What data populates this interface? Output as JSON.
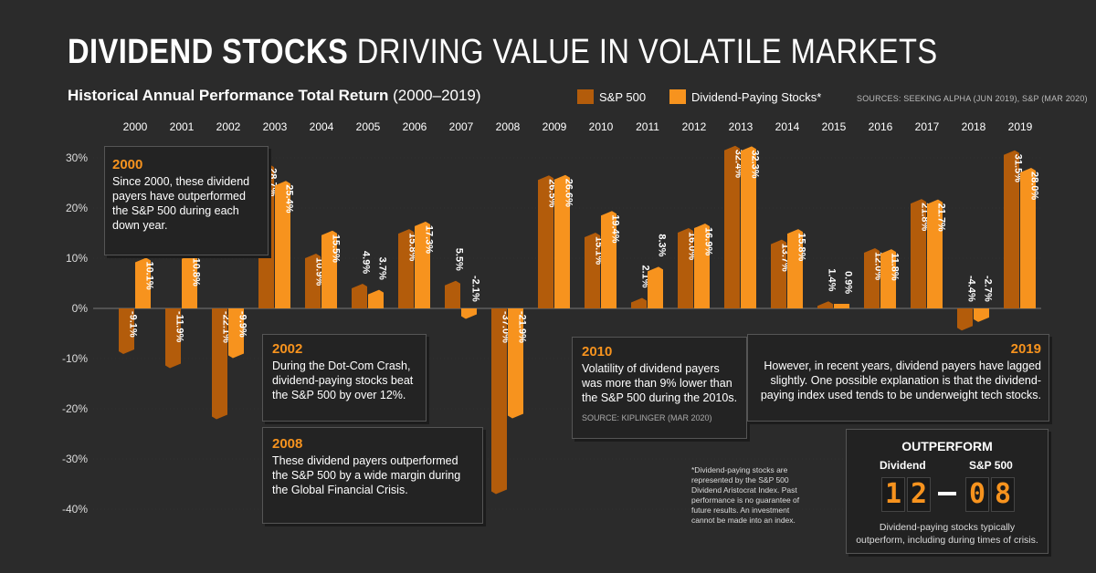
{
  "title": {
    "bold": "DIVIDEND STOCKS",
    "light": " DRIVING VALUE IN VOLATILE MARKETS"
  },
  "subtitle": {
    "bold": "Historical  Annual Performance Total Return",
    "light": " (2000–2019)"
  },
  "legend": {
    "sp500": "S&P 500",
    "dividend": "Dividend-Paying Stocks*"
  },
  "sources": "SOURCES: SEEKING ALPHA (JUN 2019), S&P (MAR 2020)",
  "colors": {
    "sp500": "#b35c0b",
    "dividend": "#f7931e",
    "background": "#2b2b2b"
  },
  "chart_data": {
    "type": "bar",
    "categories": [
      "2000",
      "2001",
      "2002",
      "2003",
      "2004",
      "2005",
      "2006",
      "2007",
      "2008",
      "2009",
      "2010",
      "2011",
      "2012",
      "2013",
      "2014",
      "2015",
      "2016",
      "2017",
      "2018",
      "2019"
    ],
    "series": [
      {
        "name": "S&P 500",
        "values": [
          -9.1,
          -11.9,
          -22.1,
          28.7,
          10.9,
          4.9,
          15.8,
          5.5,
          -37.0,
          26.5,
          15.1,
          2.1,
          16.0,
          32.4,
          13.7,
          1.4,
          12.0,
          21.8,
          -4.4,
          31.5
        ],
        "labels": [
          "-9.1%",
          "-11.9%",
          "-22.1%",
          "28.7%",
          "10.9%",
          "4.9%",
          "15.8%",
          "5.5%",
          "-37.0%",
          "26.5%",
          "15.1%",
          "2.1%",
          "16.0%",
          "32.4%",
          "13.7%",
          "1.4%",
          "12.0%",
          "21.8%",
          "-4.4%",
          "31.5%"
        ]
      },
      {
        "name": "Dividend-Paying Stocks*",
        "values": [
          10.1,
          10.8,
          -9.9,
          25.4,
          15.5,
          3.7,
          17.3,
          -2.1,
          -21.9,
          26.6,
          19.4,
          8.3,
          16.9,
          32.3,
          15.8,
          0.9,
          11.8,
          21.7,
          -2.7,
          28.0
        ],
        "labels": [
          "10.1%",
          "10.8%",
          "-9.9%",
          "25.4%",
          "15.5%",
          "3.7%",
          "17.3%",
          "-2.1%",
          "-21.9%",
          "26.6%",
          "19.4%",
          "8.3%",
          "16.9%",
          "32.3%",
          "15.8%",
          "0.9%",
          "11.8%",
          "21.7%",
          "-2.7%",
          "28.0%"
        ]
      }
    ],
    "yticks": [
      "30%",
      "20%",
      "10%",
      "0%",
      "-10%",
      "-20%",
      "-30%",
      "-40%"
    ],
    "ytick_values": [
      30,
      20,
      10,
      0,
      -10,
      -20,
      -30,
      -40
    ],
    "ylim": [
      -40,
      30
    ]
  },
  "callouts": {
    "c2000": {
      "year": "2000",
      "text": "Since 2000, these dividend payers have outperformed the S&P 500 during each down year."
    },
    "c2002": {
      "year": "2002",
      "text": "During the Dot-Com Crash, dividend-paying stocks beat the S&P 500 by over 12%."
    },
    "c2008": {
      "year": "2008",
      "text": "These dividend payers outperformed the S&P 500 by a wide margin during the Global Financial Crisis."
    },
    "c2010": {
      "year": "2010",
      "text": "Volatility of dividend payers was more than 9% lower than the S&P 500 during the 2010s.",
      "source": "SOURCE: KIPLINGER (MAR 2020)"
    },
    "c2019": {
      "year": "2019",
      "text": "However, in recent years, dividend payers have lagged slightly. One possible explanation is that the dividend-paying index used tends to be underweight tech stocks."
    }
  },
  "footnote": "*Dividend-paying stocks are represented by the S&P 500 Dividend Aristocrat Index. Past performance is no guarantee of future results. An investment cannot be made into an index.",
  "scoreboard": {
    "title": "OUTPERFORM",
    "dividend_label": "Dividend",
    "sp_label": "S&P 500",
    "dividend_digits": [
      "1",
      "2"
    ],
    "sp_digits": [
      "0",
      "8"
    ],
    "caption": "Dividend-paying stocks typically outperform, including during times of crisis."
  }
}
